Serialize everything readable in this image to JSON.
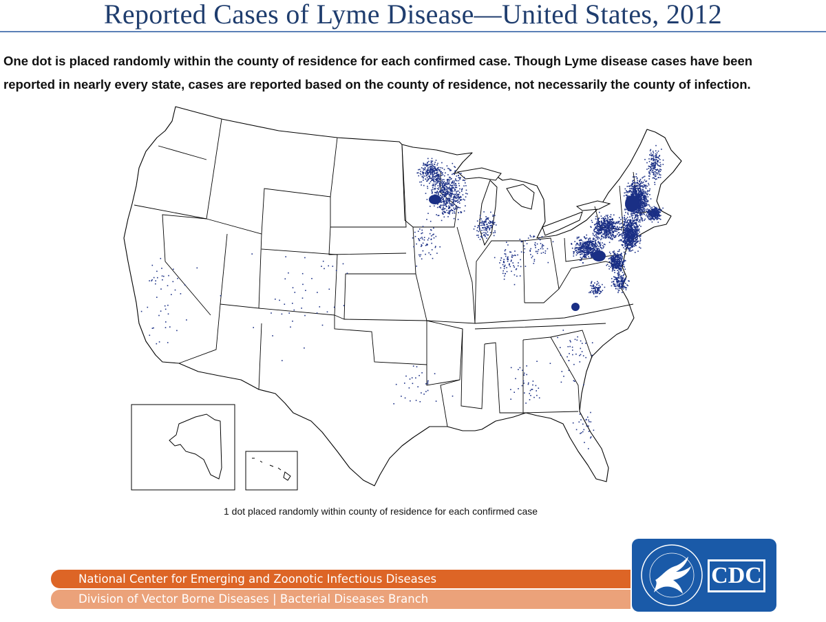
{
  "header": {
    "title": "Reported Cases of Lyme Disease—United States, 2012"
  },
  "description": {
    "line1": "One dot is placed randomly within the county of residence for each confirmed case. Though Lyme disease cases have been",
    "line2": "reported in nearly every state, cases are reported based on the county of residence, not necessarily the county of infection."
  },
  "map": {
    "caption": "1 dot placed randomly within county of residence for each confirmed case",
    "dot_color": "#1a2f85",
    "dot_meaning": "1 dot = 1 confirmed case",
    "insets": [
      "Alaska",
      "Hawaii"
    ]
  },
  "footer": {
    "line1": "National Center for Emerging and Zoonotic Infectious Diseases",
    "line2": "Division of Vector Borne Diseases | Bacterial Diseases Branch",
    "line1_color": "#dd6526",
    "line2_color": "#eba27a"
  },
  "logo": {
    "text": "CDC",
    "seal_text": "DEPARTMENT OF HEALTH & HUMAN SERVICES USA",
    "background": "#1a5aa8"
  }
}
